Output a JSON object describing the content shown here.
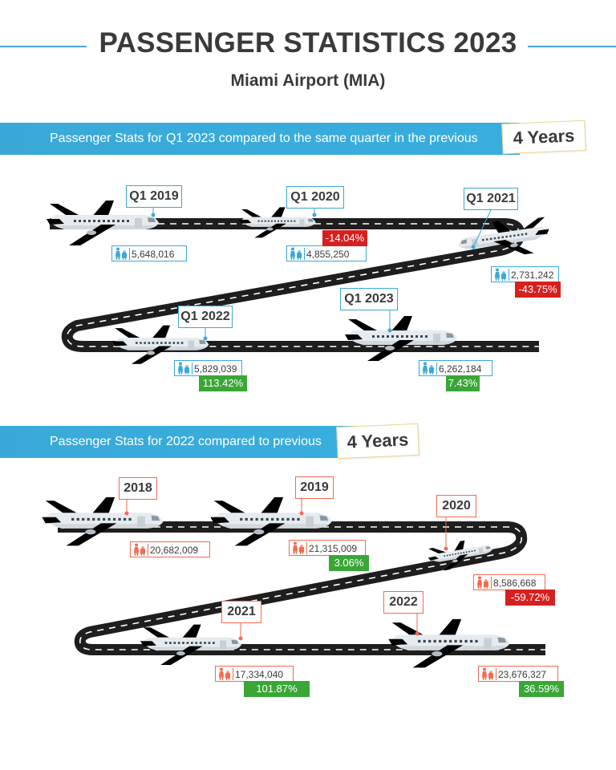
{
  "header": {
    "title": "PASSENGER STATISTICS 2023",
    "subtitle": "Miami Airport (MIA)"
  },
  "colors": {
    "accent_blue": "#3aa9d8",
    "accent_orange": "#f46b50",
    "runway": "#1e1e1e",
    "positive": "#3aa637",
    "negative": "#d6201f"
  },
  "icons": [
    "passenger-luggage-icon",
    "airplane-icon"
  ],
  "sections": [
    {
      "banner_text": "Passenger Stats for Q1 2023 compared to the same quarter in the previous",
      "badge": "4 Years",
      "color": "#3aa9d8"
    },
    {
      "banner_text": "Passenger Stats for 2022 compared to previous",
      "badge": "4 Years",
      "color": "#f46b50"
    }
  ],
  "chart_data": [
    {
      "type": "table",
      "categories": [
        "Q1 2019",
        "Q1 2020",
        "Q1 2021",
        "Q1 2022",
        "Q1 2023"
      ],
      "values": [
        5648016,
        4855250,
        2731242,
        5829039,
        6262184
      ],
      "value_labels": [
        "5,648,016",
        "4,855,250",
        "2,731,242",
        "5,829,039",
        "6,262,184"
      ],
      "changes": [
        null,
        "-14.04%",
        "-43.75%",
        "113.42%",
        "7.43%"
      ]
    },
    {
      "type": "table",
      "categories": [
        "2018",
        "2019",
        "2020",
        "2021",
        "2022"
      ],
      "values": [
        20682009,
        21315009,
        8586668,
        17334040,
        23676327
      ],
      "value_labels": [
        "20,682,009",
        "21,315,009",
        "8,586,668",
        "17,334,040",
        "23,676,327"
      ],
      "changes": [
        null,
        "3.06%",
        "-59.72%",
        "101.87%",
        "36.59%"
      ]
    }
  ]
}
